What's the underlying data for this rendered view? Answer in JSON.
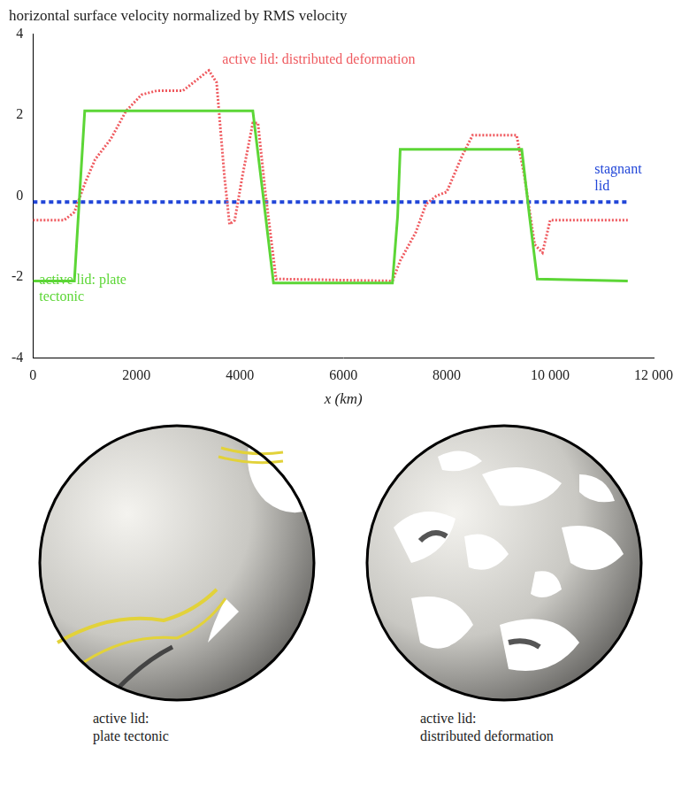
{
  "chart_data": {
    "type": "line",
    "title": "horizontal surface velocity normalized by RMS velocity",
    "x_label": "x (km)",
    "xlim": [
      0,
      12000
    ],
    "xticks": [
      0,
      2000,
      4000,
      6000,
      8000,
      {
        "value": 10000,
        "label": "10 000"
      },
      {
        "value": 12000,
        "label": "12 000"
      }
    ],
    "ylim": [
      -4,
      4
    ],
    "yticks": [
      -4,
      -2,
      0,
      2,
      4
    ],
    "grid": false,
    "series": [
      {
        "name": "active lid: plate tectonic",
        "color": "#5cd636",
        "line_style": "solid",
        "marker": "none",
        "x": [
          0,
          800,
          900,
          1000,
          4250,
          4450,
          4650,
          6950,
          7050,
          7100,
          9450,
          9600,
          9750,
          11500
        ],
        "values": [
          -2.1,
          -2.1,
          0,
          2.1,
          2.1,
          0,
          -2.15,
          -2.15,
          -0.5,
          1.15,
          1.15,
          -0.5,
          -2.05,
          -2.1
        ]
      },
      {
        "name": "active lid: distributed deformation",
        "color": "#ef5a5f",
        "line_style": "dotted",
        "marker": "none",
        "x": [
          0,
          600,
          800,
          1000,
          1200,
          1500,
          1800,
          2100,
          2400,
          2900,
          3100,
          3400,
          3550,
          3700,
          3800,
          3900,
          4050,
          4250,
          4350,
          4500,
          4700,
          6950,
          7100,
          7400,
          7600,
          7800,
          8000,
          8300,
          8500,
          9350,
          9500,
          9700,
          9850,
          10000,
          10300,
          11500
        ],
        "values": [
          -0.6,
          -0.6,
          -0.4,
          0.3,
          0.9,
          1.4,
          2.1,
          2.5,
          2.6,
          2.6,
          2.8,
          3.1,
          2.8,
          0.5,
          -0.7,
          -0.6,
          0.5,
          1.8,
          1.8,
          0,
          -2.05,
          -2.1,
          -1.6,
          -0.9,
          -0.2,
          0,
          0.1,
          1.0,
          1.5,
          1.5,
          0.5,
          -1.2,
          -1.4,
          -0.6,
          -0.6,
          -0.6
        ]
      },
      {
        "name": "stagnant lid",
        "color": "#2146d8",
        "line_style": "dotted",
        "marker": "none",
        "x": [
          0,
          11500
        ],
        "values": [
          -0.15,
          -0.15
        ]
      }
    ]
  },
  "panels": [
    {
      "caption": "active lid: plate tectonic"
    },
    {
      "caption": "active lid: distributed deformation"
    }
  ]
}
